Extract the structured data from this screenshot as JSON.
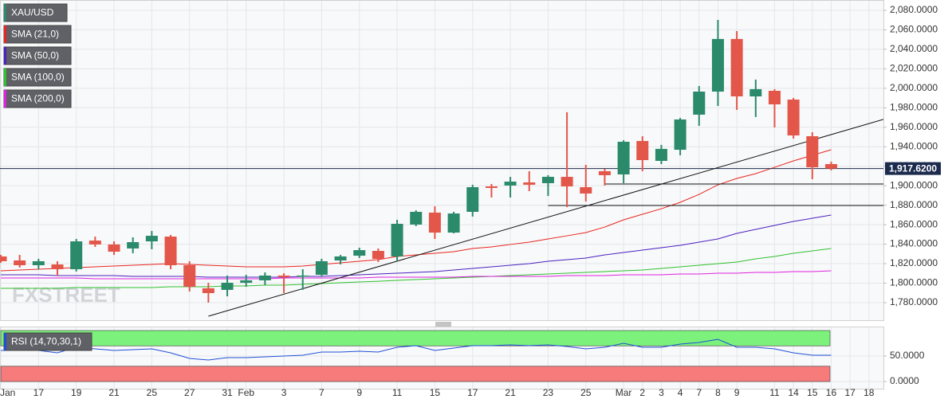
{
  "chart_data": {
    "type": "candlestick",
    "title": "XAU/USD",
    "title_color": "#2b8a6a",
    "watermark": "FXSTREET",
    "categories": [
      "Jan",
      null,
      "17",
      null,
      "19",
      null,
      "21",
      null,
      "25",
      null,
      "27",
      null,
      "31",
      "Feb",
      null,
      "3",
      null,
      "7",
      null,
      "9",
      null,
      "11",
      null,
      "15",
      null,
      "17",
      null,
      "21",
      null,
      "23",
      null,
      "25",
      null,
      "Mar",
      "2",
      "3",
      "4",
      "7",
      "8",
      "9",
      null,
      "11",
      "14",
      "15",
      "16",
      "17",
      "18"
    ],
    "open": [
      1827.4,
      1823.3,
      1818.4,
      1819.2,
      1814.3,
      1843.7,
      1839.7,
      1835.6,
      1842.9,
      1847.8,
      1818.4,
      1794.7,
      1793.1,
      1800.4,
      1802.9,
      1807.8,
      1807.0,
      1808.6,
      1823.3,
      1828.2,
      1833.1,
      1827.4,
      1860.1,
      1872.4,
      1851.9,
      1873.2,
      1899.3,
      1900.2,
      1903.4,
      1902.6,
      1909.1,
      1898.5,
      1914.9,
      1911.6,
      1945.9,
      1925.5,
      1936.9,
      1972.9,
      1996.6,
      2050.6,
      1991.7,
      1997.4,
      1988.4,
      1950.8,
      1922.2,
      null,
      null
    ],
    "high": [
      1829.0,
      1829.0,
      1825.0,
      1822.5,
      1845.4,
      1847.8,
      1842.9,
      1847.0,
      1853.6,
      1849.5,
      1822.5,
      1800.4,
      1807.8,
      1808.6,
      1811.0,
      1810.2,
      1814.3,
      1825.0,
      1829.0,
      1836.4,
      1835.6,
      1865.0,
      1874.8,
      1878.9,
      1873.2,
      1901.0,
      1901.8,
      1909.1,
      1914.9,
      1910.8,
      1975.4,
      1921.4,
      1917.3,
      1946.7,
      1950.8,
      1941.9,
      1969.6,
      2002.3,
      2070.2,
      2058.7,
      2008.9,
      1999.1,
      1990.1,
      1954.9,
      1924.7,
      null,
      null
    ],
    "low": [
      1820.9,
      1816.0,
      1814.0,
      1807.8,
      1811.9,
      1837.2,
      1829.0,
      1830.7,
      1834.8,
      1814.3,
      1791.4,
      1780.0,
      1786.5,
      1796.3,
      1798.0,
      1789.8,
      1793.1,
      1806.9,
      1819.2,
      1825.8,
      1821.7,
      1822.5,
      1858.5,
      1845.4,
      1851.1,
      1868.3,
      1887.9,
      1887.9,
      1894.4,
      1889.5,
      1878.1,
      1883.8,
      1900.2,
      1902.6,
      1914.9,
      1922.2,
      1931.2,
      1961.5,
      1981.9,
      1977.8,
      1970.5,
      1959.8,
      1948.4,
      1906.7,
      1915.7,
      null,
      null
    ],
    "close": [
      1822.5,
      1818.4,
      1822.5,
      1814.3,
      1842.9,
      1839.7,
      1832.3,
      1842.1,
      1848.6,
      1818.4,
      1796.3,
      1789.8,
      1800.4,
      1802.9,
      1807.8,
      1806.1,
      1807.8,
      1822.5,
      1827.4,
      1833.9,
      1824.9,
      1860.9,
      1873.2,
      1851.9,
      1871.5,
      1898.5,
      1897.7,
      1904.2,
      1901.0,
      1909.1,
      1899.3,
      1892.0,
      1910.8,
      1945.1,
      1926.3,
      1937.8,
      1968.0,
      1996.6,
      2050.6,
      1991.7,
      1999.1,
      1983.5,
      1951.6,
      1918.9,
      1917.62,
      null,
      null
    ],
    "up_color": "#2b8a6a",
    "down_color": "#e3564a",
    "ylim": [
      1762,
      2090.6
    ],
    "yticks": [
      {
        "value": 1780,
        "label": "1,780.0000"
      },
      {
        "value": 1800,
        "label": "1,800.0000"
      },
      {
        "value": 1820,
        "label": "1,820.0000"
      },
      {
        "value": 1840,
        "label": "1,840.0000"
      },
      {
        "value": 1860,
        "label": "1,860.0000"
      },
      {
        "value": 1880,
        "label": "1,880.0000"
      },
      {
        "value": 1900,
        "label": "1,900.0000"
      },
      {
        "value": 1920,
        "label": "1,920.0000"
      },
      {
        "value": 1940,
        "label": "1,940.0000"
      },
      {
        "value": 1960,
        "label": "1,960.0000"
      },
      {
        "value": 1980,
        "label": "1,980.0000"
      },
      {
        "value": 2000,
        "label": "2,000.0000"
      },
      {
        "value": 2020,
        "label": "2,020.0000"
      },
      {
        "value": 2040,
        "label": "2,040.0000"
      },
      {
        "value": 2060,
        "label": "2,060.0000"
      },
      {
        "value": 2080,
        "label": "2,080.0000"
      }
    ],
    "grid": true,
    "series": [
      {
        "name": "SMA (21,0)",
        "color": "#e8251f",
        "values": [
          1812.7,
          1813.5,
          1814.3,
          1815.1,
          1815.9,
          1816.8,
          1817.6,
          1818.4,
          1819.2,
          1820.0,
          1819.2,
          1818.4,
          1817.6,
          1816.8,
          1816.8,
          1816.8,
          1817.6,
          1819.2,
          1820.9,
          1822.5,
          1824.1,
          1827.4,
          1829.0,
          1830.7,
          1832.3,
          1835.6,
          1837.2,
          1839.7,
          1842.1,
          1845.4,
          1848.6,
          1851.9,
          1857.6,
          1865.0,
          1870.7,
          1876.4,
          1883.0,
          1891.1,
          1900.9,
          1907.5,
          1912.4,
          1918.9,
          1925.5,
          1931.2,
          1936.9,
          null,
          null
        ]
      },
      {
        "name": "SMA (50,0)",
        "color": "#4b1fc0",
        "values": [
          1808.6,
          1808.6,
          1808.6,
          1807.8,
          1807.8,
          1807.8,
          1807.8,
          1807.0,
          1807.0,
          1807.0,
          1807.0,
          1806.1,
          1806.1,
          1806.1,
          1806.1,
          1806.1,
          1807.0,
          1807.0,
          1807.8,
          1808.6,
          1809.4,
          1810.2,
          1811.0,
          1811.9,
          1813.5,
          1815.1,
          1816.8,
          1818.4,
          1820.0,
          1822.5,
          1824.1,
          1825.8,
          1829.0,
          1831.5,
          1833.9,
          1836.4,
          1838.8,
          1842.1,
          1845.4,
          1851.1,
          1855.2,
          1859.3,
          1863.4,
          1866.6,
          1869.9,
          null,
          null
        ]
      },
      {
        "name": "SMA (100,0)",
        "color": "#2fc12f",
        "values": [
          1794.7,
          1794.7,
          1794.7,
          1794.7,
          1795.5,
          1795.5,
          1795.5,
          1795.5,
          1795.5,
          1796.3,
          1796.3,
          1796.3,
          1797.1,
          1797.1,
          1798.0,
          1798.0,
          1798.8,
          1799.6,
          1800.4,
          1801.2,
          1802.0,
          1802.9,
          1803.7,
          1804.5,
          1805.3,
          1806.1,
          1807.0,
          1807.8,
          1808.6,
          1809.4,
          1810.2,
          1811.0,
          1811.9,
          1812.7,
          1813.5,
          1815.1,
          1816.8,
          1818.4,
          1820.0,
          1821.7,
          1824.9,
          1827.4,
          1830.7,
          1833.1,
          1835.6,
          null,
          null
        ]
      },
      {
        "name": "SMA (200,0)",
        "color": "#e020e0",
        "values": [
          1805.3,
          1805.3,
          1805.3,
          1805.3,
          1805.3,
          1804.5,
          1804.5,
          1804.5,
          1804.5,
          1804.5,
          1804.5,
          1804.5,
          1804.5,
          1804.5,
          1804.5,
          1805.3,
          1805.3,
          1805.3,
          1805.3,
          1805.3,
          1806.1,
          1806.1,
          1806.1,
          1806.1,
          1806.1,
          1807.0,
          1807.0,
          1807.0,
          1807.0,
          1807.0,
          1807.8,
          1807.8,
          1807.8,
          1808.6,
          1808.6,
          1808.6,
          1809.4,
          1809.4,
          1810.2,
          1810.2,
          1811.0,
          1811.0,
          1811.9,
          1811.9,
          1812.7,
          null,
          null
        ]
      }
    ],
    "last_price": {
      "value": 1917.62,
      "label": "1,917.6200",
      "color": "#1c2b4d"
    },
    "levels": [
      {
        "value": 1901.8,
        "from": 32
      },
      {
        "value": 1879.7,
        "from": 29
      }
    ],
    "trendline": {
      "x": [
        11,
        44
      ],
      "values": [
        1766.1,
        1952.5
      ]
    },
    "rsi": {
      "name": "RSI (14,70,30,1)",
      "color": "#1f4fd8",
      "values": [
        60.9,
        60.9,
        60.9,
        56.3,
        67.2,
        64.1,
        60.9,
        62.5,
        64.1,
        56.3,
        45.3,
        42.2,
        46.9,
        46.9,
        48.4,
        50.0,
        51.6,
        57.8,
        57.8,
        59.4,
        57.8,
        67.2,
        70.3,
        60.9,
        65.6,
        70.3,
        70.3,
        71.9,
        70.3,
        71.9,
        68.8,
        64.1,
        67.2,
        75.0,
        67.2,
        67.2,
        73.4,
        76.6,
        82.8,
        67.2,
        67.2,
        64.1,
        56.3,
        51.6,
        51.6,
        null,
        null
      ],
      "ylim": [
        -14,
        107.8
      ],
      "yticks": [
        {
          "value": 0,
          "label": "0.0000"
        },
        {
          "value": 50,
          "label": "50.0000"
        }
      ],
      "upper_band": [
        70,
        100
      ],
      "lower_band": [
        0,
        30
      ]
    }
  }
}
